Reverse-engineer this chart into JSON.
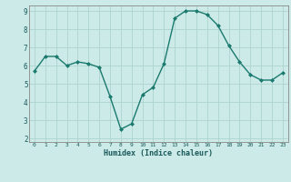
{
  "x": [
    0,
    1,
    2,
    3,
    4,
    5,
    6,
    7,
    8,
    9,
    10,
    11,
    12,
    13,
    14,
    15,
    16,
    17,
    18,
    19,
    20,
    21,
    22,
    23
  ],
  "y": [
    5.7,
    6.5,
    6.5,
    6.0,
    6.2,
    6.1,
    5.9,
    4.3,
    2.5,
    2.8,
    4.4,
    4.8,
    6.1,
    8.6,
    9.0,
    9.0,
    8.8,
    8.2,
    7.1,
    6.2,
    5.5,
    5.2,
    5.2,
    5.6
  ],
  "xlabel": "Humidex (Indice chaleur)",
  "ylim": [
    1.8,
    9.3
  ],
  "xlim": [
    -0.5,
    23.5
  ],
  "line_color": "#1a7a6e",
  "marker_color": "#1a7a6e",
  "bg_color": "#cceae8",
  "grid_color": "#aed4d0",
  "tick_labels": [
    "0",
    "1",
    "2",
    "3",
    "4",
    "5",
    "6",
    "7",
    "8",
    "9",
    "10",
    "11",
    "12",
    "13",
    "14",
    "15",
    "16",
    "17",
    "18",
    "19",
    "20",
    "21",
    "22",
    "23"
  ],
  "yticks": [
    2,
    3,
    4,
    5,
    6,
    7,
    8,
    9
  ]
}
